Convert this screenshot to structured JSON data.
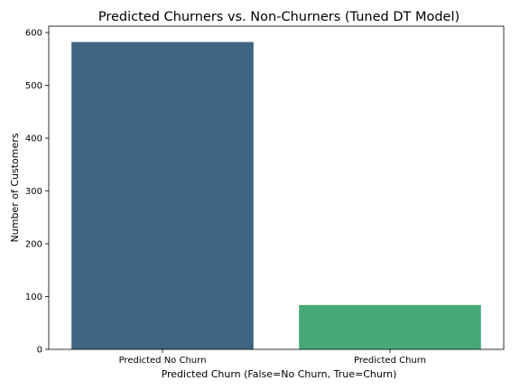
{
  "chart_data": {
    "type": "bar",
    "title": "Predicted Churners vs. Non-Churners (Tuned DT Model)",
    "xlabel": "Predicted Churn (False=No Churn, True=Churn)",
    "ylabel": "Number of Customers",
    "categories": [
      "Predicted No Churn",
      "Predicted Churn"
    ],
    "values": [
      582,
      84
    ],
    "colors": [
      "#3e6682",
      "#46a977"
    ],
    "ylim": [
      0,
      612
    ],
    "yticks": [
      0,
      100,
      200,
      300,
      400,
      500,
      600
    ],
    "grid": false
  }
}
